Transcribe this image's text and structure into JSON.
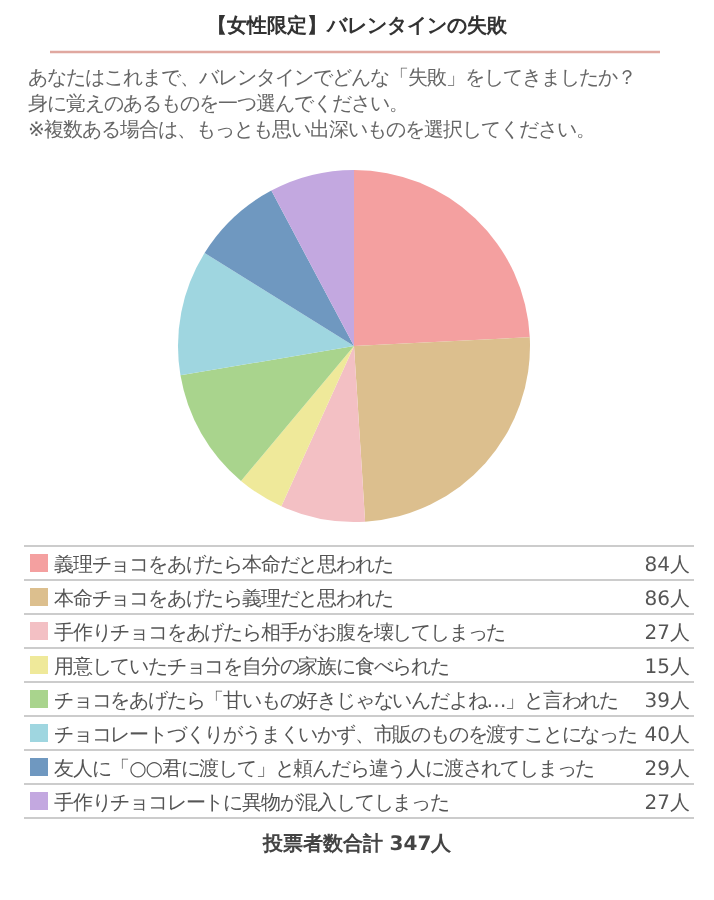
{
  "chart_data": {
    "type": "pie",
    "title": "【女性限定】バレンタインの失敗",
    "subtitle": "あなたはこれまで、バレンタインでどんな「失敗」をしてきましたか？身に覚えのあるものを一つ選んでください。\n※複数ある場合は、もっとも思い出深いものを選択してください。",
    "categories": [
      "義理チョコをあげたら本命だと思われた",
      "本命チョコをあげたら義理だと思われた",
      "手作りチョコをあげたら相手がお腹を壊してしまった",
      "用意していたチョコを自分の家族に食べられた",
      "チョコをあげたら「甘いもの好きじゃないんだよね…」と言われた",
      "チョコレートづくりがうまくいかず、市販のものを渡すことになった",
      "友人に「○○君に渡して」と頼んだら違う人に渡されてしまった",
      "手作りチョコレートに異物が混入してしまった"
    ],
    "values": [
      84,
      86,
      27,
      15,
      39,
      40,
      29,
      27
    ],
    "value_labels": [
      "84人",
      "86人",
      "27人",
      "15人",
      "39人",
      "40人",
      "29人",
      "27人"
    ],
    "colors": [
      "#f4a0a0",
      "#dcbf8e",
      "#f3c0c4",
      "#efe99a",
      "#a9d48d",
      "#9fd6e0",
      "#6f98c0",
      "#c3a8e0"
    ],
    "legend": "bottom",
    "annotations": [
      "投票者数合計 347人"
    ]
  }
}
